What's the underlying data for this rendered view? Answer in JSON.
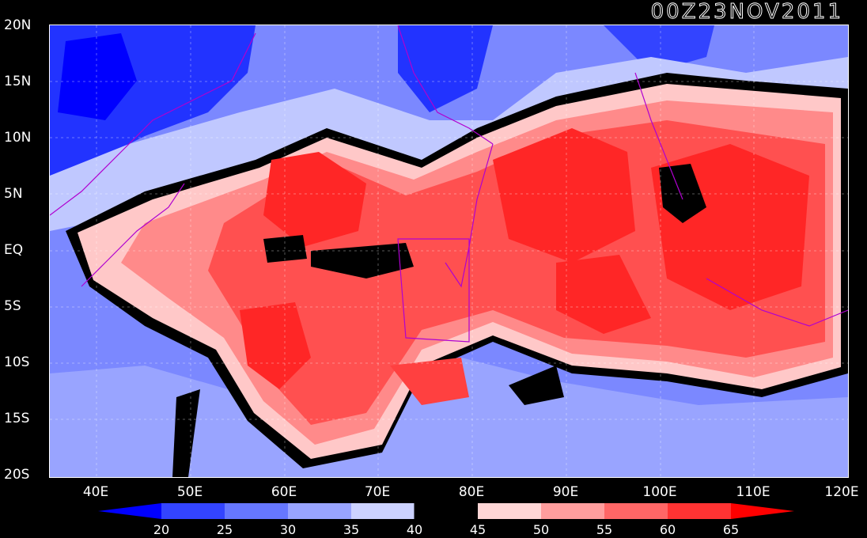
{
  "title": "00Z23NOV2011",
  "lat_labels": [
    "20N",
    "15N",
    "10N",
    "5N",
    "EQ",
    "5S",
    "10S",
    "15S",
    "20S"
  ],
  "lon_labels": [
    "40E",
    "50E",
    "60E",
    "70E",
    "80E",
    "90E",
    "100E",
    "110E",
    "120E"
  ],
  "colorbar": {
    "labels": [
      "20",
      "25",
      "30",
      "35",
      "40",
      "45",
      "50",
      "55",
      "60",
      "65"
    ],
    "colors": [
      "#0000ff",
      "#3344ff",
      "#6677ff",
      "#99a4ff",
      "#ccd2ff",
      "#000000",
      "#ffd6d6",
      "#ff9d9d",
      "#ff6666",
      "#ff3333",
      "#ff0000"
    ]
  },
  "colors": {
    "low": "#2233ff",
    "mid_low": "#6f7cff",
    "light": "#c0c8ff",
    "boundary": "#000000",
    "pink": "#ffc8c8",
    "salmon": "#ff8a8a",
    "red": "#ff4a4a",
    "deep_red": "#ff1a1a",
    "coast": "#b000d0"
  }
}
